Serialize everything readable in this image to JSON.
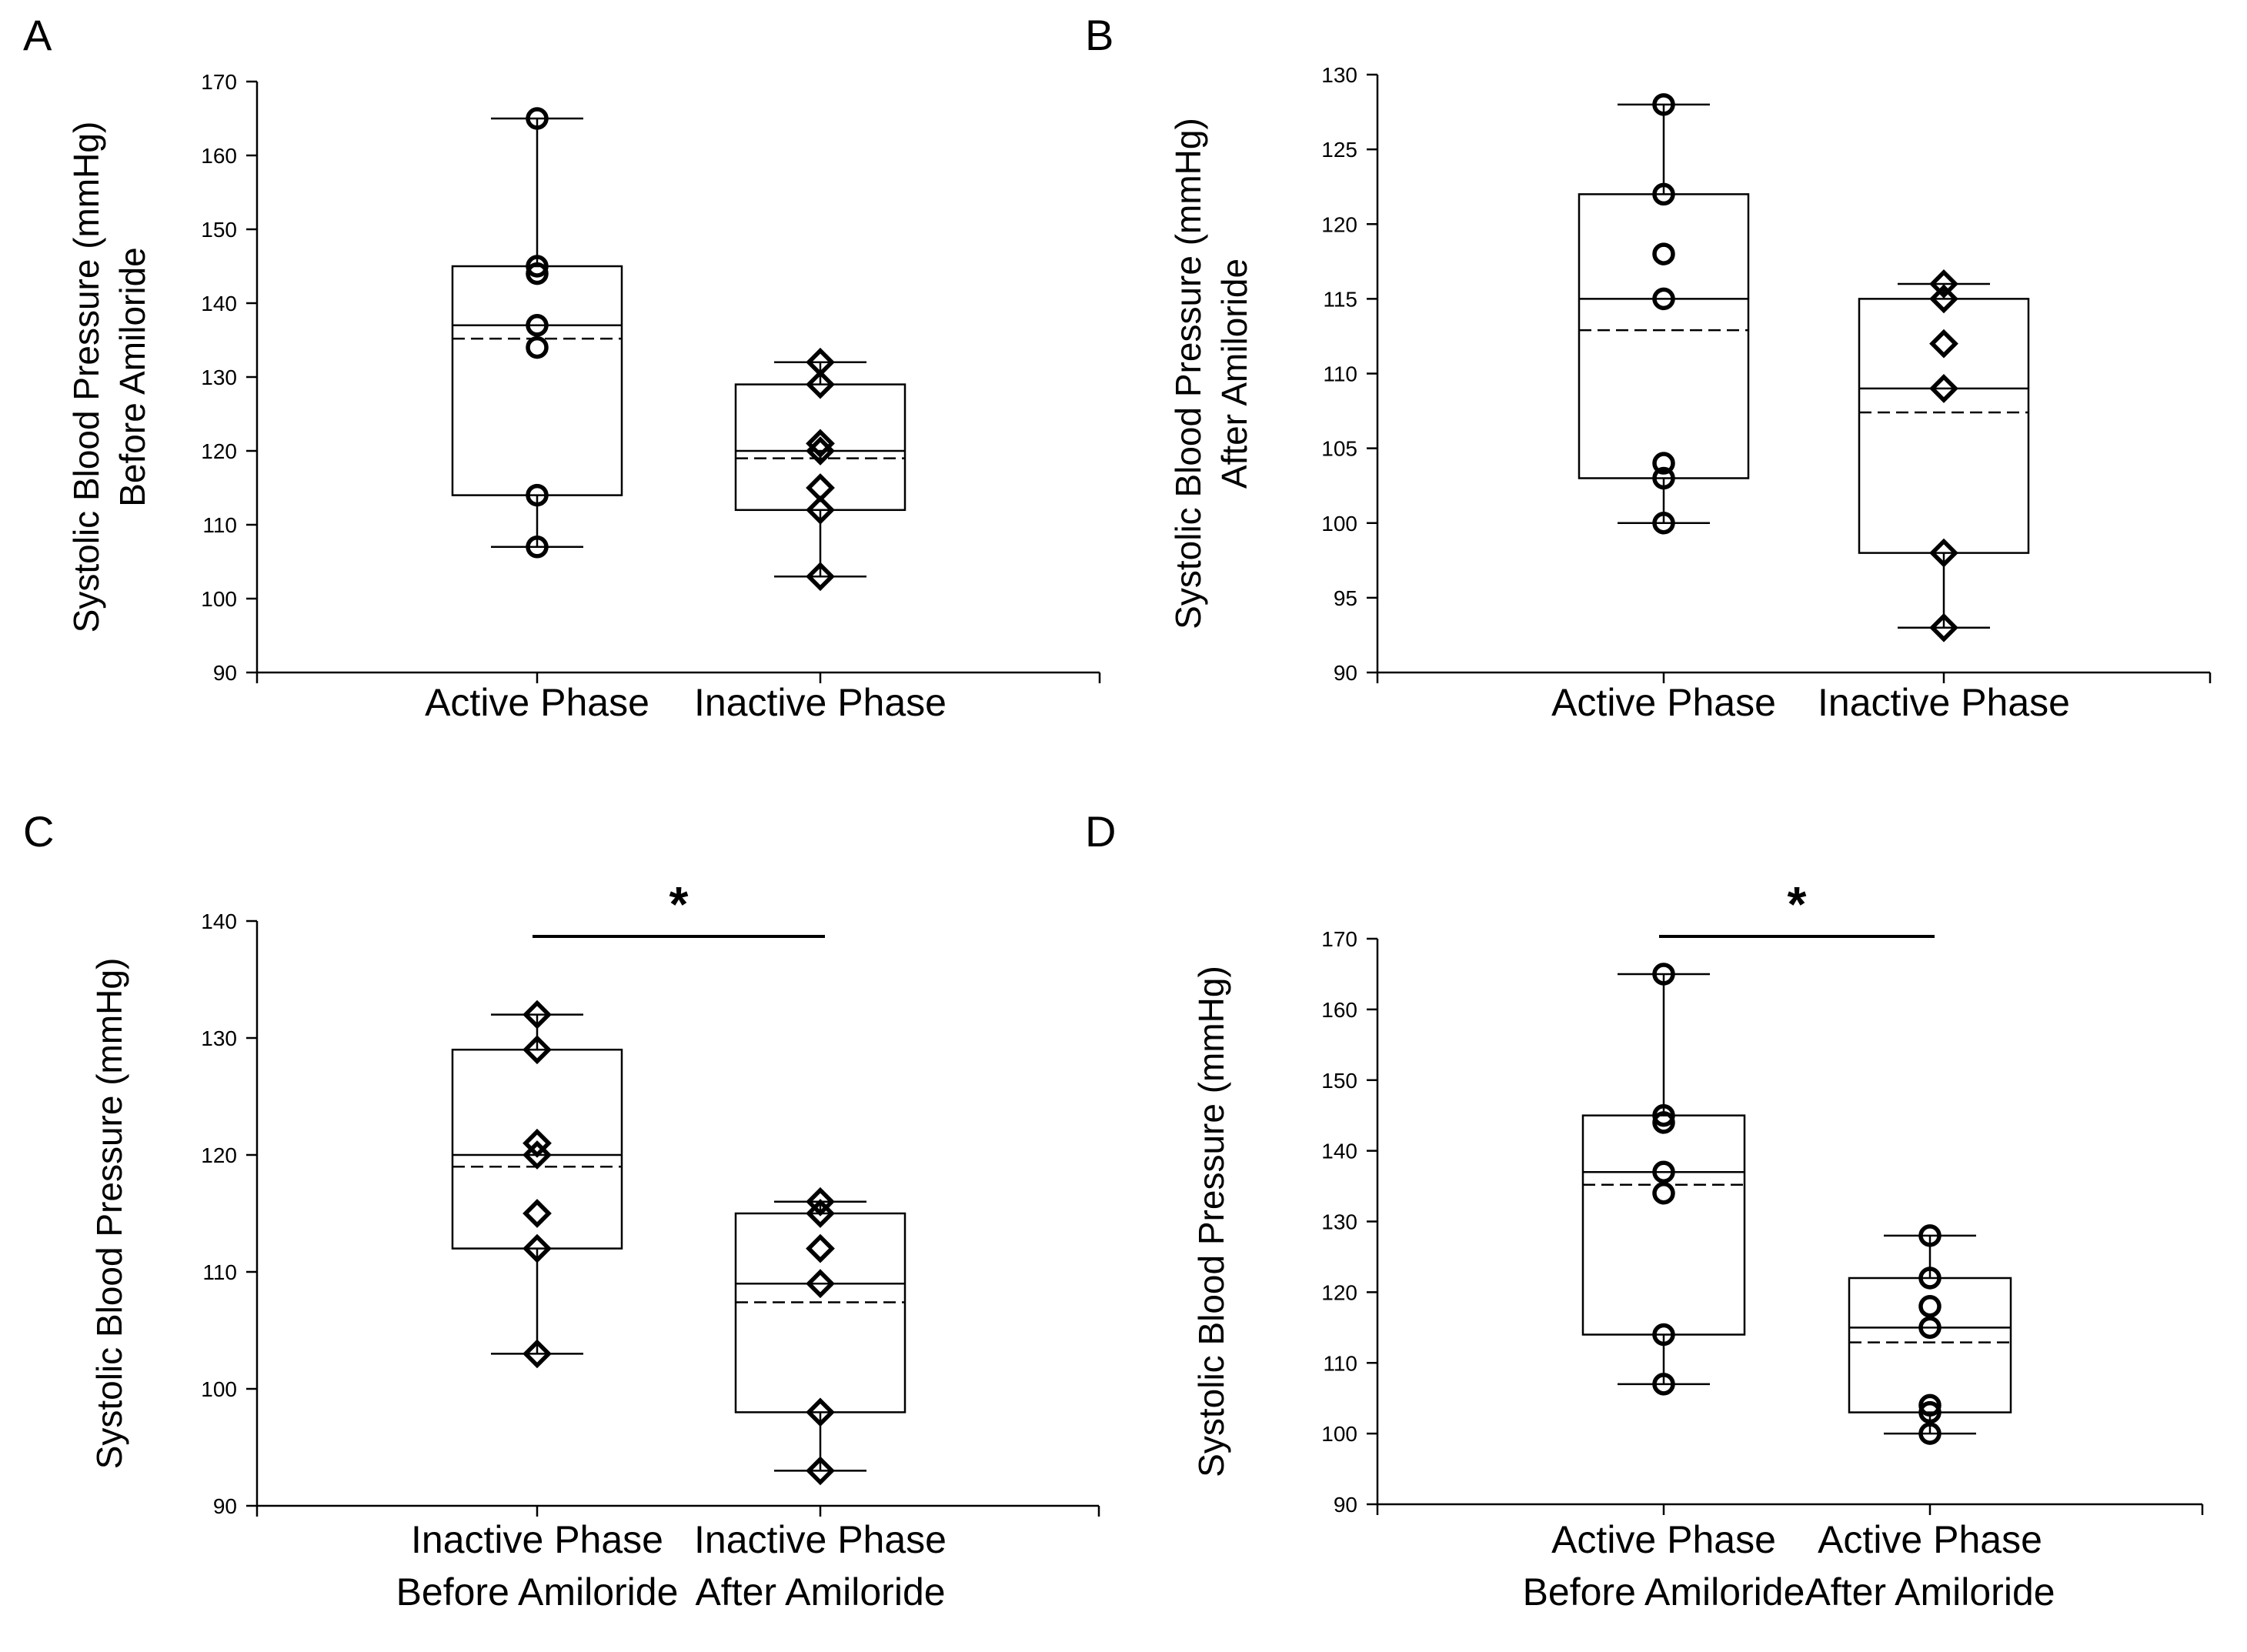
{
  "chart_data": [
    {
      "panel": "A",
      "type": "box",
      "ylabel": [
        "Systolic Blood Pressure (mmHg)",
        "Before Amiloride"
      ],
      "ylim": [
        90,
        170
      ],
      "yticks": [
        90,
        100,
        110,
        120,
        130,
        140,
        150,
        160,
        170
      ],
      "categories": [
        [
          "Active Phase"
        ],
        [
          "Inactive Phase"
        ]
      ],
      "groups": [
        {
          "marker": "circle",
          "q1": 114,
          "median": 137,
          "mean": 135.2,
          "q3": 145,
          "whisker_low": 107,
          "whisker_high": 165,
          "points": [
            165,
            145,
            144,
            137,
            134,
            114,
            107
          ]
        },
        {
          "marker": "diamond",
          "q1": 112,
          "median": 120,
          "mean": 119,
          "q3": 129,
          "whisker_low": 103,
          "whisker_high": 132,
          "points": [
            132,
            129,
            121,
            120,
            115,
            112,
            103
          ]
        }
      ],
      "significance": null
    },
    {
      "panel": "B",
      "type": "box",
      "ylabel": [
        "Systolic Blood Pressure (mmHg)",
        "After Amiloride"
      ],
      "ylim": [
        90,
        130
      ],
      "yticks": [
        90,
        95,
        100,
        105,
        110,
        115,
        120,
        125,
        130
      ],
      "categories": [
        [
          "Active Phase"
        ],
        [
          "Inactive Phase"
        ]
      ],
      "groups": [
        {
          "marker": "circle",
          "q1": 103,
          "median": 115,
          "mean": 112.9,
          "q3": 122,
          "whisker_low": 100,
          "whisker_high": 128,
          "points": [
            128,
            122,
            118,
            115,
            104,
            103,
            100
          ]
        },
        {
          "marker": "diamond",
          "q1": 98,
          "median": 109,
          "mean": 107.4,
          "q3": 115,
          "whisker_low": 93,
          "whisker_high": 116,
          "points": [
            116,
            115,
            112,
            109,
            98,
            93
          ]
        }
      ],
      "significance": null
    },
    {
      "panel": "C",
      "type": "box",
      "ylabel": [
        "Systolic Blood Pressure (mmHg)"
      ],
      "ylim": [
        90,
        140
      ],
      "yticks": [
        90,
        100,
        110,
        120,
        130,
        140
      ],
      "categories": [
        [
          "Inactive Phase",
          "Before Amiloride"
        ],
        [
          "Inactive Phase",
          "After Amiloride"
        ]
      ],
      "groups": [
        {
          "marker": "diamond",
          "q1": 112,
          "median": 120,
          "mean": 119,
          "q3": 129,
          "whisker_low": 103,
          "whisker_high": 132,
          "points": [
            132,
            129,
            121,
            120,
            115,
            112,
            103
          ]
        },
        {
          "marker": "diamond",
          "q1": 98,
          "median": 109,
          "mean": 107.4,
          "q3": 115,
          "whisker_low": 93,
          "whisker_high": 116,
          "points": [
            116,
            115,
            112,
            109,
            98,
            93
          ]
        }
      ],
      "significance": "*"
    },
    {
      "panel": "D",
      "type": "box",
      "ylabel": [
        "Systolic Blood Pressure (mmHg)"
      ],
      "ylim": [
        90,
        170
      ],
      "yticks": [
        90,
        100,
        110,
        120,
        130,
        140,
        150,
        160,
        170
      ],
      "categories": [
        [
          "Active Phase",
          "Before Amiloride"
        ],
        [
          "Active Phase",
          "After Amiloride"
        ]
      ],
      "groups": [
        {
          "marker": "circle",
          "q1": 114,
          "median": 137,
          "mean": 135.2,
          "q3": 145,
          "whisker_low": 107,
          "whisker_high": 165,
          "points": [
            165,
            145,
            144,
            137,
            134,
            114,
            107
          ]
        },
        {
          "marker": "circle",
          "q1": 103,
          "median": 115,
          "mean": 112.9,
          "q3": 122,
          "whisker_low": 100,
          "whisker_high": 128,
          "points": [
            128,
            122,
            118,
            115,
            104,
            103,
            100
          ]
        }
      ],
      "significance": "*"
    }
  ]
}
